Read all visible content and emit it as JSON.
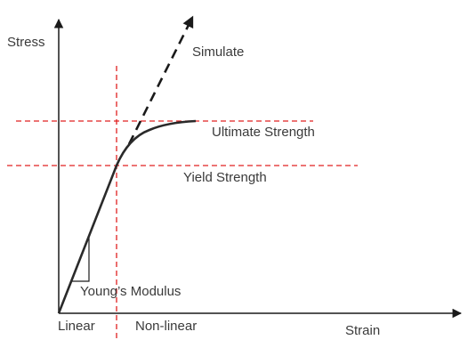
{
  "labels": {
    "stress": "Stress",
    "strain": "Strain",
    "simulate": "Simulate",
    "ultimate_strength": "Ultimate  Strength",
    "yield_strength": "Yield Strength",
    "youngs_modulus": "Young’s Modulus",
    "linear": "Linear",
    "non_linear": "Non-linear"
  },
  "colors": {
    "axis": "#1a1a1a",
    "curve": "#2a2a2a",
    "reference_line": "#e02020",
    "text": "#3a3a3a"
  }
}
